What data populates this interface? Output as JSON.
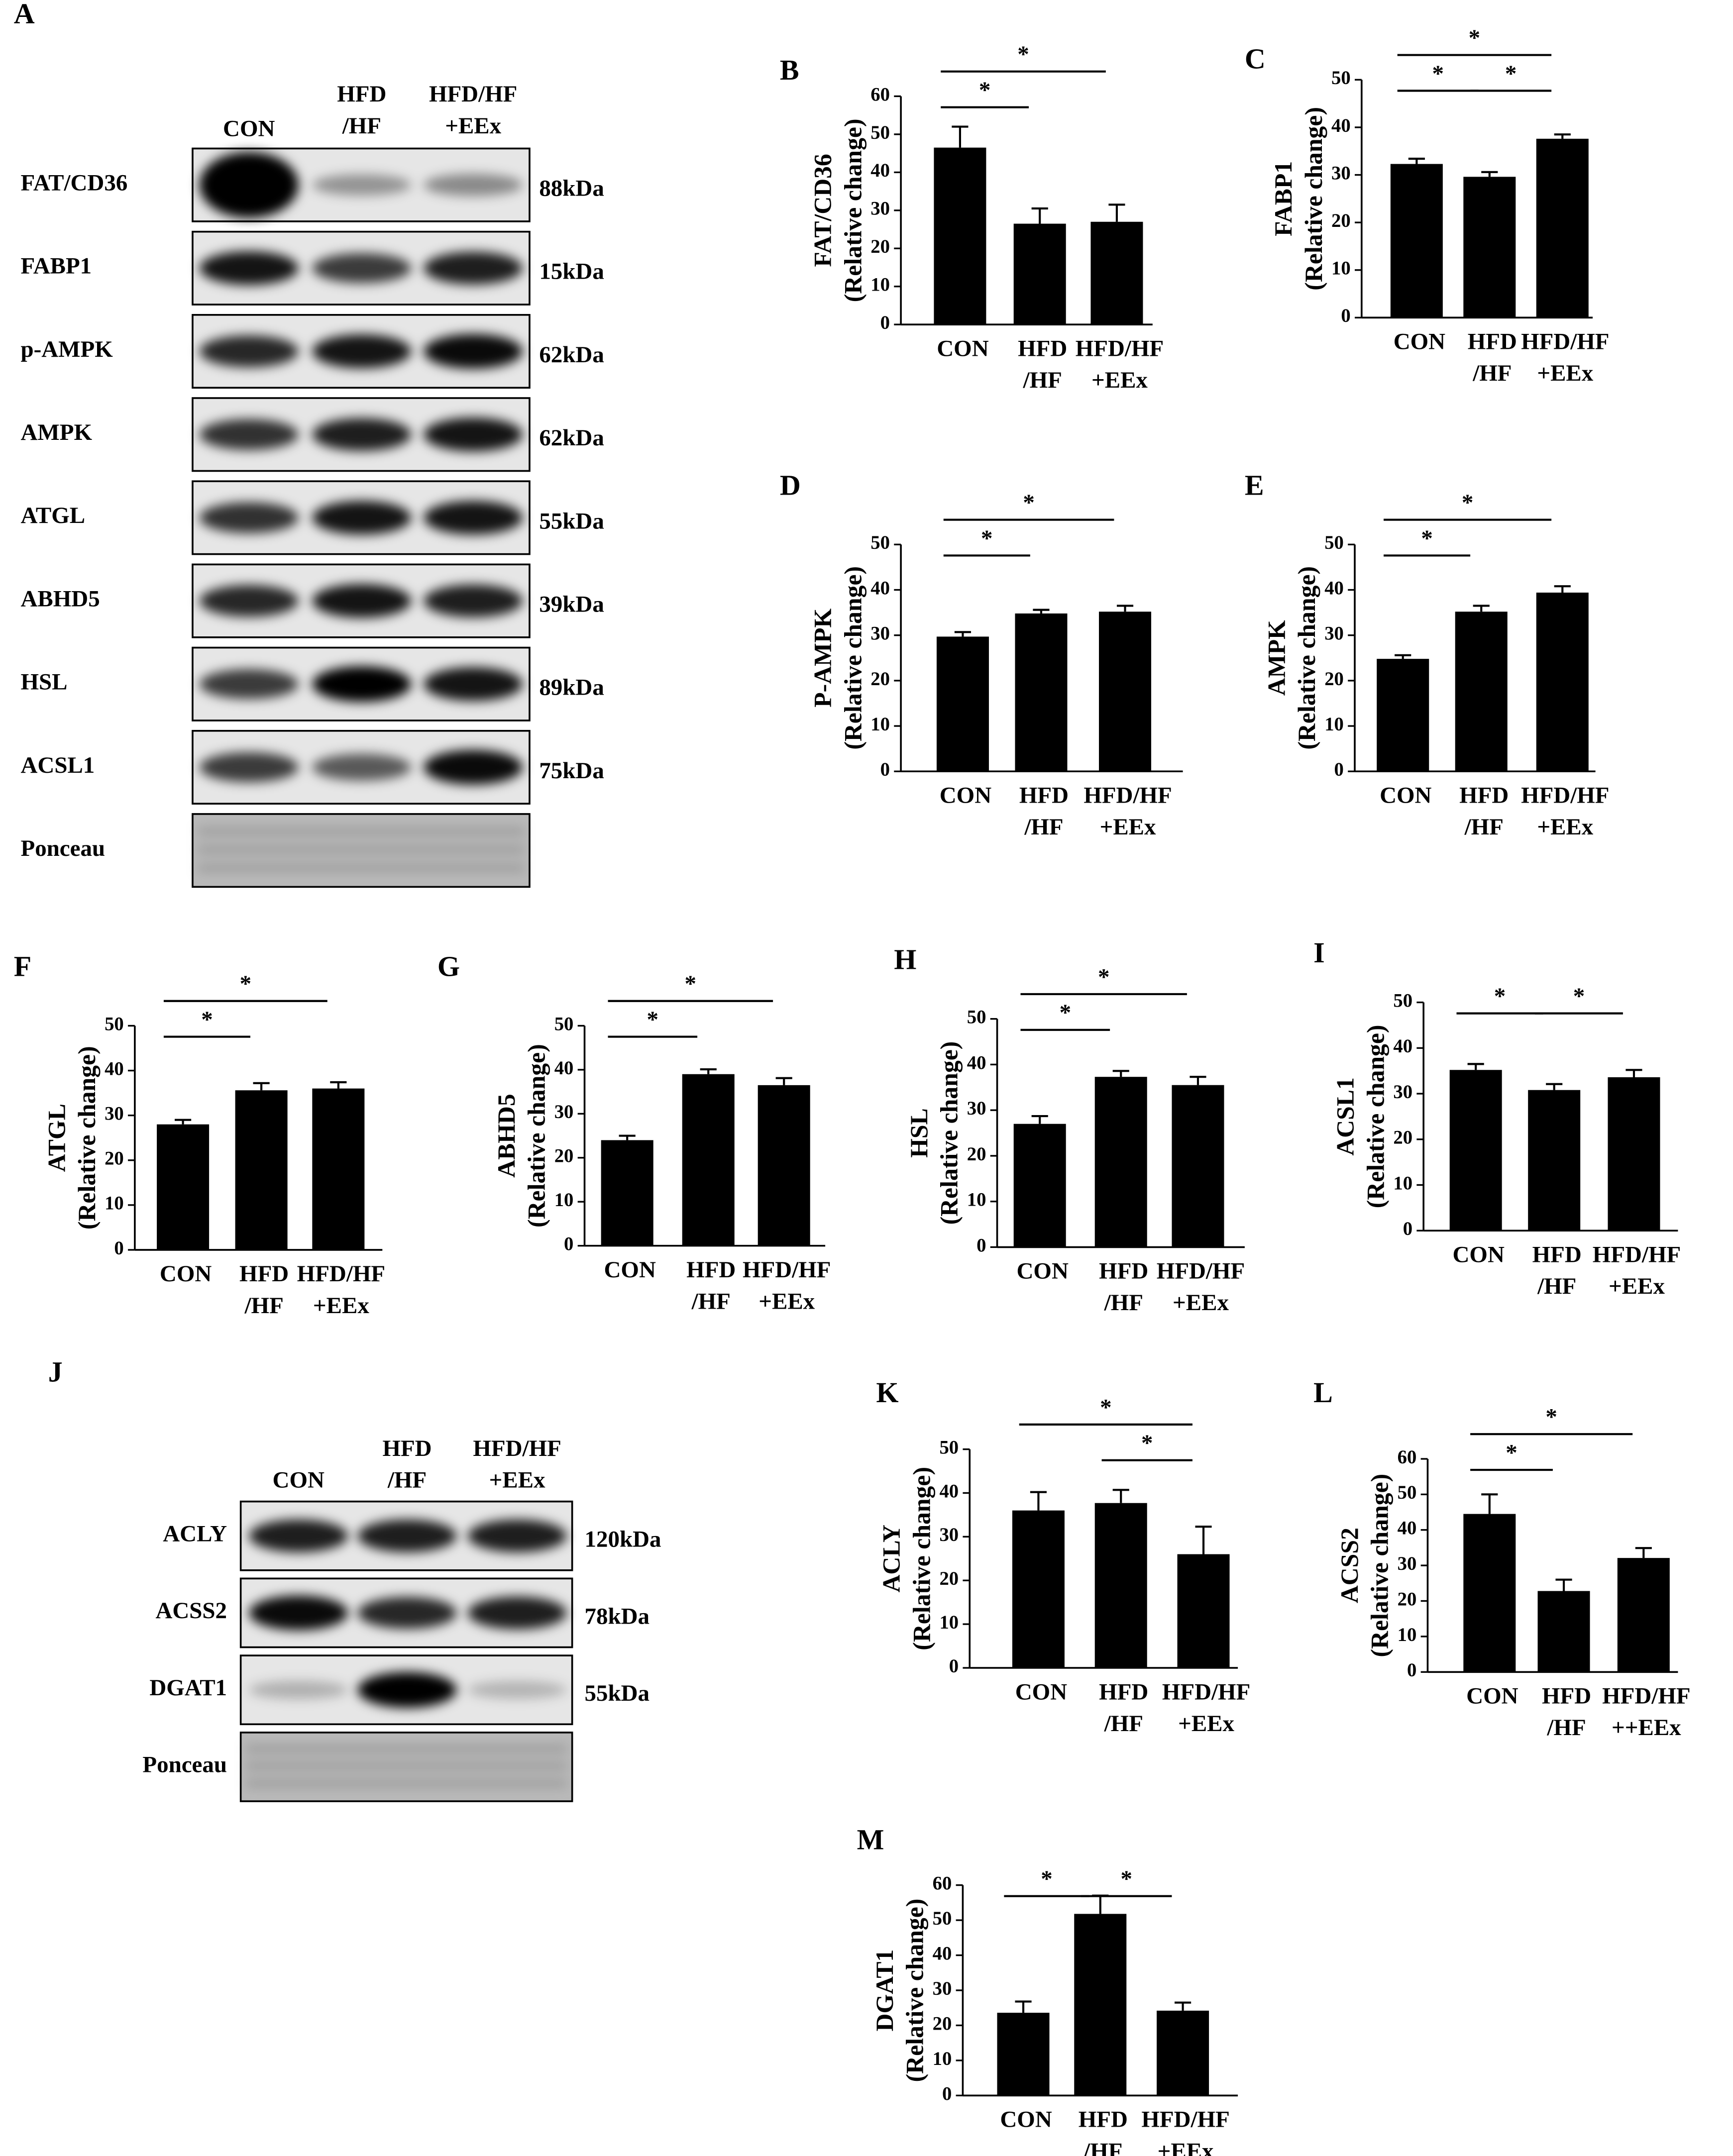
{
  "chart_data": [
    {
      "type": "bar",
      "panel": "B",
      "ylabel": [
        "FAT/CD36",
        "(Relative change)"
      ],
      "categories": [
        [
          "CON"
        ],
        [
          "HFD",
          "/HF"
        ],
        [
          "HFD/HF",
          "+EEx"
        ]
      ],
      "values": [
        46.5,
        26.5,
        27
      ],
      "errors": [
        5.5,
        4,
        4.5
      ],
      "color": "#000000",
      "ylim": [
        0,
        60
      ],
      "yticks": [
        0,
        10,
        20,
        30,
        40,
        50,
        60
      ],
      "comparisons": [
        {
          "pair": [
            0,
            1
          ],
          "label": "*"
        },
        {
          "pair": [
            0,
            2
          ],
          "label": "*"
        }
      ]
    },
    {
      "type": "bar",
      "panel": "C",
      "ylabel": [
        "FABP1",
        "(Relative change)"
      ],
      "categories": [
        [
          "CON"
        ],
        [
          "HFD",
          "/HF"
        ],
        [
          "HFD/HF",
          "+EEx"
        ]
      ],
      "values": [
        32.3,
        29.6,
        37.6
      ],
      "errors": [
        1.1,
        1,
        0.9
      ],
      "color": "#000000",
      "ylim": [
        0,
        50
      ],
      "yticks": [
        0,
        10,
        20,
        30,
        40,
        50
      ],
      "comparisons": [
        {
          "pair": [
            0,
            1
          ],
          "label": "*"
        },
        {
          "pair": [
            1,
            2
          ],
          "label": "*"
        },
        {
          "pair": [
            0,
            2
          ],
          "label": "*"
        }
      ]
    },
    {
      "type": "bar",
      "panel": "D",
      "ylabel": [
        "P-AMPK",
        "(Relative change)"
      ],
      "categories": [
        [
          "CON"
        ],
        [
          "HFD",
          "/HF"
        ],
        [
          "HFD/HF",
          "+EEx"
        ]
      ],
      "values": [
        29.7,
        34.8,
        35.2
      ],
      "errors": [
        1,
        0.8,
        1.3
      ],
      "color": "#000000",
      "ylim": [
        0,
        50
      ],
      "yticks": [
        0,
        10,
        20,
        30,
        40,
        50
      ],
      "comparisons": [
        {
          "pair": [
            0,
            1
          ],
          "label": "*"
        },
        {
          "pair": [
            0,
            2
          ],
          "label": "*"
        }
      ]
    },
    {
      "type": "bar",
      "panel": "E",
      "ylabel": [
        "AMPK",
        "(Relative change)"
      ],
      "categories": [
        [
          "CON"
        ],
        [
          "HFD",
          "/HF"
        ],
        [
          "HFD/HF",
          "+EEx"
        ]
      ],
      "values": [
        24.8,
        35.2,
        39.4
      ],
      "errors": [
        0.8,
        1.3,
        1.4
      ],
      "color": "#000000",
      "ylim": [
        0,
        50
      ],
      "yticks": [
        0,
        10,
        20,
        30,
        40,
        50
      ],
      "comparisons": [
        {
          "pair": [
            0,
            1
          ],
          "label": "*"
        },
        {
          "pair": [
            0,
            2
          ],
          "label": "*"
        }
      ]
    },
    {
      "type": "bar",
      "panel": "F",
      "ylabel": [
        "ATGL",
        "(Relative change)"
      ],
      "categories": [
        [
          "CON"
        ],
        [
          "HFD",
          "/HF"
        ],
        [
          "HFD/HF",
          "+EEx"
        ]
      ],
      "values": [
        28,
        35.6,
        36
      ],
      "errors": [
        1,
        1.6,
        1.4
      ],
      "color": "#000000",
      "ylim": [
        0,
        50
      ],
      "yticks": [
        0,
        10,
        20,
        30,
        40,
        50
      ],
      "comparisons": [
        {
          "pair": [
            0,
            1
          ],
          "label": "*"
        },
        {
          "pair": [
            0,
            2
          ],
          "label": "*"
        }
      ]
    },
    {
      "type": "bar",
      "panel": "G",
      "ylabel": [
        "ABHD5",
        "(Relative change)"
      ],
      "categories": [
        [
          "CON"
        ],
        [
          "HFD",
          "/HF"
        ],
        [
          "HFD/HF",
          "+EEx"
        ]
      ],
      "values": [
        24,
        39,
        36.5
      ],
      "errors": [
        1,
        1.1,
        1.6
      ],
      "color": "#000000",
      "ylim": [
        0,
        50
      ],
      "yticks": [
        0,
        10,
        20,
        30,
        40,
        50
      ],
      "comparisons": [
        {
          "pair": [
            0,
            1
          ],
          "label": "*"
        },
        {
          "pair": [
            0,
            2
          ],
          "label": "*"
        }
      ]
    },
    {
      "type": "bar",
      "panel": "H",
      "ylabel": [
        "HSL",
        "(Relative change)"
      ],
      "categories": [
        [
          "CON"
        ],
        [
          "HFD",
          "/HF"
        ],
        [
          "HFD/HF",
          "+EEx"
        ]
      ],
      "values": [
        27,
        37.3,
        35.5
      ],
      "errors": [
        1.7,
        1.3,
        1.8
      ],
      "color": "#000000",
      "ylim": [
        0,
        50
      ],
      "yticks": [
        0,
        10,
        20,
        30,
        40,
        50
      ],
      "comparisons": [
        {
          "pair": [
            0,
            1
          ],
          "label": "*"
        },
        {
          "pair": [
            0,
            2
          ],
          "label": "*"
        }
      ]
    },
    {
      "type": "bar",
      "panel": "I",
      "ylabel": [
        "ACSL1",
        "(Relative change)"
      ],
      "categories": [
        [
          "CON"
        ],
        [
          "HFD",
          "/HF"
        ],
        [
          "HFD/HF",
          "+EEx"
        ]
      ],
      "values": [
        35.2,
        30.8,
        33.6
      ],
      "errors": [
        1.3,
        1.3,
        1.6
      ],
      "color": "#000000",
      "ylim": [
        0,
        50
      ],
      "yticks": [
        0,
        10,
        20,
        30,
        40,
        50
      ],
      "comparisons": [
        {
          "pair": [
            0,
            1
          ],
          "label": "*"
        },
        {
          "pair": [
            1,
            2
          ],
          "label": "*"
        }
      ]
    },
    {
      "type": "bar",
      "panel": "K",
      "ylabel": [
        "ACLY",
        "(Relative change)"
      ],
      "categories": [
        [
          "CON"
        ],
        [
          "HFD",
          "/HF"
        ],
        [
          "HFD/HF",
          "+EEx"
        ]
      ],
      "values": [
        36,
        37.7,
        26
      ],
      "errors": [
        4.2,
        3,
        6.3
      ],
      "color": "#000000",
      "ylim": [
        0,
        50
      ],
      "yticks": [
        0,
        10,
        20,
        30,
        40,
        50
      ],
      "comparisons": [
        {
          "pair": [
            1,
            2
          ],
          "label": "*"
        },
        {
          "pair": [
            0,
            2
          ],
          "label": "*"
        }
      ]
    },
    {
      "type": "bar",
      "panel": "L",
      "ylabel": [
        "ACSS2",
        "(Relative change)"
      ],
      "categories": [
        [
          "CON"
        ],
        [
          "HFD",
          "/HF"
        ],
        [
          "HFD/HF",
          "++EEx"
        ]
      ],
      "values": [
        44.5,
        22.8,
        32.1
      ],
      "errors": [
        5.5,
        3.2,
        2.8
      ],
      "color": "#000000",
      "ylim": [
        0,
        60
      ],
      "yticks": [
        0,
        10,
        20,
        30,
        40,
        50,
        60
      ],
      "comparisons": [
        {
          "pair": [
            0,
            1
          ],
          "label": "*"
        },
        {
          "pair": [
            0,
            2
          ],
          "label": "*"
        }
      ]
    },
    {
      "type": "bar",
      "panel": "M",
      "ylabel": [
        "DGAT1",
        "(Relative change)"
      ],
      "categories": [
        [
          "CON"
        ],
        [
          "HFD",
          "/HF"
        ],
        [
          "HFD/HF",
          "+EEx"
        ]
      ],
      "values": [
        23.6,
        51.8,
        24.2
      ],
      "errors": [
        3.2,
        5.2,
        2.3
      ],
      "color": "#000000",
      "ylim": [
        0,
        60
      ],
      "yticks": [
        0,
        10,
        20,
        30,
        40,
        50,
        60
      ],
      "comparisons": [
        {
          "pair": [
            0,
            1
          ],
          "label": "*"
        },
        {
          "pair": [
            1,
            2
          ],
          "label": "*"
        }
      ]
    }
  ],
  "blots": [
    {
      "panel": "A",
      "lanes": [
        [
          "CON"
        ],
        [
          "HFD",
          "/HF"
        ],
        [
          "HFD/HF",
          "+EEx"
        ]
      ],
      "rows": [
        {
          "label": "FAT/CD36",
          "size": "88kDa"
        },
        {
          "label": "FABP1",
          "size": "15kDa"
        },
        {
          "label": "p-AMPK",
          "size": "62kDa"
        },
        {
          "label": "AMPK",
          "size": "62kDa"
        },
        {
          "label": "ATGL",
          "size": "55kDa"
        },
        {
          "label": "ABHD5",
          "size": "39kDa"
        },
        {
          "label": "HSL",
          "size": "89kDa"
        },
        {
          "label": "ACSL1",
          "size": "75kDa"
        },
        {
          "label": "Ponceau"
        }
      ]
    },
    {
      "panel": "J",
      "lanes": [
        [
          "CON"
        ],
        [
          "HFD",
          "/HF"
        ],
        [
          "HFD/HF",
          "+EEx"
        ]
      ],
      "rows": [
        {
          "label": "ACLY",
          "size": "120kDa"
        },
        {
          "label": "ACSS2",
          "size": "78kDa"
        },
        {
          "label": "DGAT1",
          "size": "55kDa"
        },
        {
          "label": "Ponceau"
        }
      ]
    }
  ]
}
